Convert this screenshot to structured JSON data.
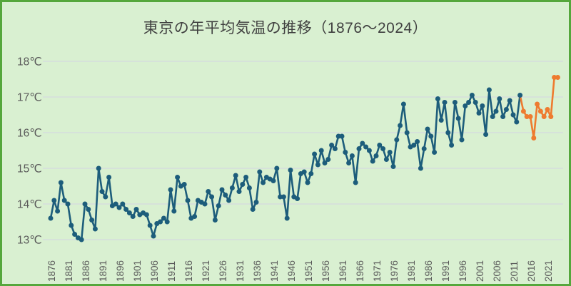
{
  "title": "東京の年平均気温の推移（1876～2024）",
  "colors": {
    "background": "#d9f0d1",
    "frame_border": "#55a73c",
    "series_main": "#1d5d7b",
    "series_recent": "#ee7b2f",
    "gridline": "#d3d3e3",
    "axis_text": "#595959",
    "title_text": "#3f3f3f"
  },
  "chart_data": {
    "type": "line",
    "title": "東京の年平均気温の推移（1876～2024）",
    "xlabel": "",
    "ylabel": "",
    "grid": true,
    "legend": false,
    "ylim": [
      13,
      18
    ],
    "y_ticks": [
      13,
      14,
      15,
      16,
      17,
      18
    ],
    "y_tick_labels": [
      "13℃",
      "14℃",
      "15℃",
      "16℃",
      "17℃",
      "18℃"
    ],
    "x_tick_labels": [
      "1876",
      "1881",
      "1886",
      "1891",
      "1896",
      "1901",
      "1906",
      "1911",
      "1916",
      "1921",
      "1926",
      "1931",
      "1936",
      "1941",
      "1946",
      "1951",
      "1956",
      "1961",
      "1966",
      "1971",
      "1976",
      "1981",
      "1986",
      "1991",
      "1996",
      "2001",
      "2006",
      "2011",
      "2016",
      "2021"
    ],
    "x_tick_years": [
      1876,
      1881,
      1886,
      1891,
      1896,
      1901,
      1906,
      1911,
      1916,
      1921,
      1926,
      1931,
      1936,
      1941,
      1946,
      1951,
      1956,
      1961,
      1966,
      1971,
      1976,
      1981,
      1986,
      1991,
      1996,
      2001,
      2006,
      2011,
      2016,
      2021
    ],
    "series": [
      {
        "name": "annual-mean-temp-1876-2013",
        "color": "#1d5d7b",
        "start_year": 1876,
        "values": [
          13.6,
          14.1,
          13.8,
          14.6,
          14.1,
          14.0,
          13.4,
          13.15,
          13.05,
          13.0,
          14.0,
          13.85,
          13.55,
          13.3,
          15.0,
          14.35,
          14.2,
          14.75,
          13.95,
          14.0,
          13.9,
          14.0,
          13.85,
          13.75,
          13.65,
          13.85,
          13.7,
          13.75,
          13.7,
          13.4,
          13.1,
          13.45,
          13.5,
          13.6,
          13.5,
          14.4,
          13.8,
          14.75,
          14.5,
          14.55,
          14.1,
          13.6,
          13.65,
          14.1,
          14.05,
          14.0,
          14.35,
          14.2,
          13.55,
          13.95,
          14.4,
          14.25,
          14.1,
          14.45,
          14.8,
          14.35,
          14.55,
          14.75,
          14.45,
          13.85,
          14.05,
          14.9,
          14.6,
          14.75,
          14.7,
          14.65,
          15.0,
          14.2,
          14.2,
          13.6,
          14.95,
          14.2,
          14.15,
          14.85,
          14.9,
          14.6,
          14.85,
          15.4,
          15.1,
          15.5,
          15.15,
          15.25,
          15.65,
          15.55,
          15.9,
          15.9,
          15.45,
          15.15,
          15.35,
          14.6,
          15.55,
          15.7,
          15.6,
          15.5,
          15.2,
          15.35,
          15.65,
          15.55,
          15.25,
          15.45,
          15.05,
          15.8,
          16.2,
          16.8,
          16.0,
          15.6,
          15.65,
          15.75,
          15.0,
          15.55,
          16.1,
          15.9,
          15.45,
          16.95,
          16.35,
          16.85,
          16.0,
          15.65,
          16.85,
          16.4,
          15.8,
          16.75,
          16.85,
          17.05,
          16.85,
          16.55,
          16.75,
          15.95,
          17.2,
          16.45,
          16.6,
          16.95,
          16.45,
          16.65,
          16.9,
          16.5,
          16.3,
          17.05
        ]
      },
      {
        "name": "annual-mean-temp-2014-2024",
        "color": "#ee7b2f",
        "start_year": 2014,
        "values": [
          16.6,
          16.45,
          16.45,
          15.85,
          16.8,
          16.6,
          16.45,
          16.65,
          16.45,
          17.55,
          17.55
        ]
      }
    ]
  }
}
